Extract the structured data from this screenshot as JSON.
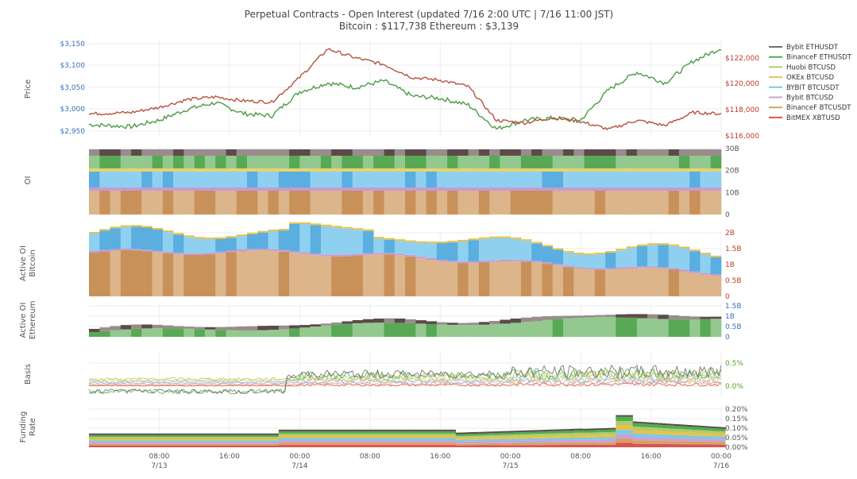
{
  "title_line1": "Perpetual Contracts - Open Interest   (updated   7/16 2:00 UTC   |   7/16 11:00 JST)",
  "title_line2": "Bitcoin : $117,738     Ethereum : $3,139",
  "legend": [
    {
      "label": "Bybit ETHUSDT",
      "color": "#7a6a6a"
    },
    {
      "label": "BinanceF ETHUSDT",
      "color": "#4caf50"
    },
    {
      "label": "Huobi BTCUSD",
      "color": "#b5c96a"
    },
    {
      "label": "OKEx BTCUSD",
      "color": "#e6c24a"
    },
    {
      "label": "BYBIT BTCUSDT",
      "color": "#7ec8e3"
    },
    {
      "label": "Bybit BTCUSD",
      "color": "#c9a2d6"
    },
    {
      "label": "BinanceF BTCUSDT",
      "color": "#d9a066"
    },
    {
      "label": "BitMEX XBTUSD",
      "color": "#d9534f"
    }
  ],
  "x_ticks": [
    {
      "label": "08:00",
      "sub": "7/13"
    },
    {
      "label": "16:00",
      "sub": ""
    },
    {
      "label": "00:00",
      "sub": "7/14"
    },
    {
      "label": "08:00",
      "sub": ""
    },
    {
      "label": "16:00",
      "sub": ""
    },
    {
      "label": "00:00",
      "sub": "7/15"
    },
    {
      "label": "08:00",
      "sub": ""
    },
    {
      "label": "16:00",
      "sub": ""
    },
    {
      "label": "00:00",
      "sub": "7/16"
    }
  ],
  "panels": [
    {
      "id": "price",
      "label": [
        "Price"
      ],
      "left_ticks": [
        "$3,150",
        "$3,100",
        "$3,050",
        "$3,000",
        "$2,950"
      ],
      "right_ticks": [
        "$122,000",
        "$120,000",
        "$118,000",
        "$116,000"
      ]
    },
    {
      "id": "oi",
      "label": [
        "OI"
      ],
      "right_ticks": [
        "30B",
        "20B",
        "10B",
        "0"
      ]
    },
    {
      "id": "active_btc",
      "label": [
        "Active OI",
        "Bitcoin"
      ],
      "right_ticks": [
        "2B",
        "1.5B",
        "1B",
        "0.5B",
        "0"
      ]
    },
    {
      "id": "active_eth",
      "label": [
        "Active OI",
        "Ethereum"
      ],
      "right_ticks": [
        "1.5B",
        "1B",
        "0.5B",
        "0"
      ]
    },
    {
      "id": "basis",
      "label": [
        "Basis"
      ],
      "right_ticks": [
        "0.5%",
        "0.0%"
      ]
    },
    {
      "id": "funding",
      "label": [
        "Funding",
        "Rate"
      ],
      "right_ticks": [
        "0.20%",
        "0.15%",
        "0.10%",
        "0.05%",
        "0.00%"
      ]
    }
  ],
  "colors": {
    "eth_price": "#4e9a48",
    "btc_price": "#b5533c",
    "left_axis": "#3b6fb6",
    "right_axis_price": "#c0392b",
    "axis_text": "#555555",
    "grid": "#eeeeee"
  },
  "chart_data": {
    "type": "line",
    "title": "Perpetual Contracts - Open Interest",
    "x_range": [
      "7/12 ~22:00",
      "7/16 02:00"
    ],
    "series": [
      {
        "name": "Ethereum price (left axis, $)",
        "x_hours": [
          0,
          6,
          10,
          14,
          18,
          22,
          26,
          30,
          34,
          38,
          42,
          46,
          50,
          54,
          58,
          62,
          66,
          70,
          74,
          78,
          82,
          86,
          90
        ],
        "values": [
          2965,
          2960,
          2975,
          3000,
          3015,
          2990,
          2985,
          3040,
          3060,
          3050,
          3065,
          3030,
          3025,
          3010,
          2955,
          2975,
          2980,
          2975,
          3045,
          3085,
          3060,
          3110,
          3140
        ]
      },
      {
        "name": "Bitcoin price (right axis, $)",
        "x_hours": [
          0,
          6,
          10,
          14,
          18,
          22,
          26,
          30,
          34,
          38,
          42,
          46,
          50,
          54,
          58,
          62,
          66,
          70,
          74,
          78,
          82,
          86,
          90
        ],
        "values": [
          117700,
          117800,
          118200,
          118800,
          119000,
          118700,
          118600,
          120500,
          122700,
          122000,
          121500,
          120500,
          120300,
          119800,
          117200,
          117000,
          117400,
          117100,
          116500,
          117200,
          116800,
          117800,
          117700
        ]
      }
    ],
    "stacked_panels": {
      "oi_total_range_B": [
        0,
        30
      ],
      "active_btc_range_B": [
        0,
        2
      ],
      "active_eth_range_B": [
        0,
        1.5
      ],
      "basis_range_pct": [
        -0.1,
        0.6
      ],
      "funding_range_pct": [
        0,
        0.2
      ]
    },
    "ylabel": "Price",
    "grid": true,
    "legend_position": "right"
  }
}
